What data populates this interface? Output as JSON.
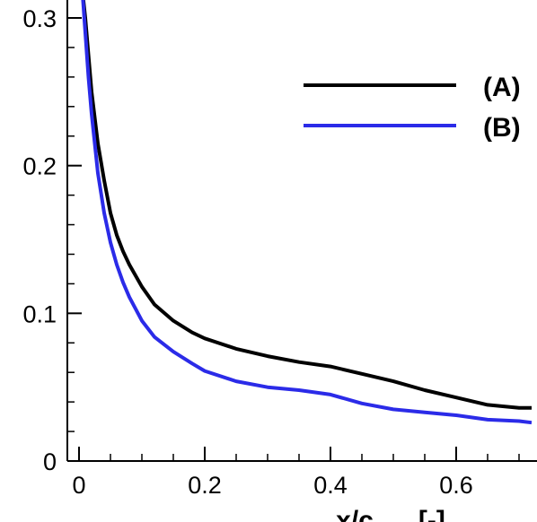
{
  "chart_data": {
    "type": "line",
    "xlabel": "x/c      [-]",
    "ylabel": "",
    "xlim": [
      -0.01,
      0.72
    ],
    "ylim": [
      0,
      0.31
    ],
    "x_ticks": [
      0,
      0.2,
      0.4,
      0.6
    ],
    "x_tick_labels": [
      "0",
      "0.2",
      "0.4",
      "0.6"
    ],
    "y_ticks": [
      0,
      0.1,
      0.2,
      0.3
    ],
    "y_tick_labels": [
      "0",
      "0.1",
      "0.2",
      "0.3"
    ],
    "x_minor_step": 0.05,
    "y_minor_step": 0.02,
    "grid": false,
    "legend_position": "top-right",
    "series": [
      {
        "name": "(A)",
        "color": "#000000",
        "x": [
          0.0,
          0.005,
          0.01,
          0.015,
          0.02,
          0.03,
          0.04,
          0.05,
          0.06,
          0.07,
          0.08,
          0.1,
          0.12,
          0.15,
          0.18,
          0.2,
          0.25,
          0.3,
          0.35,
          0.4,
          0.45,
          0.5,
          0.55,
          0.6,
          0.65,
          0.7,
          0.72
        ],
        "values": [
          0.35,
          0.32,
          0.3,
          0.275,
          0.25,
          0.215,
          0.19,
          0.168,
          0.153,
          0.142,
          0.133,
          0.118,
          0.106,
          0.095,
          0.087,
          0.083,
          0.076,
          0.071,
          0.067,
          0.064,
          0.059,
          0.054,
          0.048,
          0.043,
          0.038,
          0.036,
          0.036
        ]
      },
      {
        "name": "(B)",
        "color": "#2b2be8",
        "x": [
          0.0,
          0.005,
          0.01,
          0.015,
          0.02,
          0.03,
          0.04,
          0.05,
          0.06,
          0.07,
          0.08,
          0.1,
          0.12,
          0.15,
          0.18,
          0.2,
          0.25,
          0.3,
          0.35,
          0.4,
          0.45,
          0.5,
          0.55,
          0.6,
          0.65,
          0.7,
          0.72
        ],
        "values": [
          0.35,
          0.32,
          0.29,
          0.26,
          0.235,
          0.195,
          0.168,
          0.148,
          0.133,
          0.121,
          0.111,
          0.095,
          0.084,
          0.074,
          0.066,
          0.061,
          0.054,
          0.05,
          0.048,
          0.045,
          0.039,
          0.035,
          0.033,
          0.031,
          0.028,
          0.027,
          0.026
        ]
      }
    ]
  }
}
